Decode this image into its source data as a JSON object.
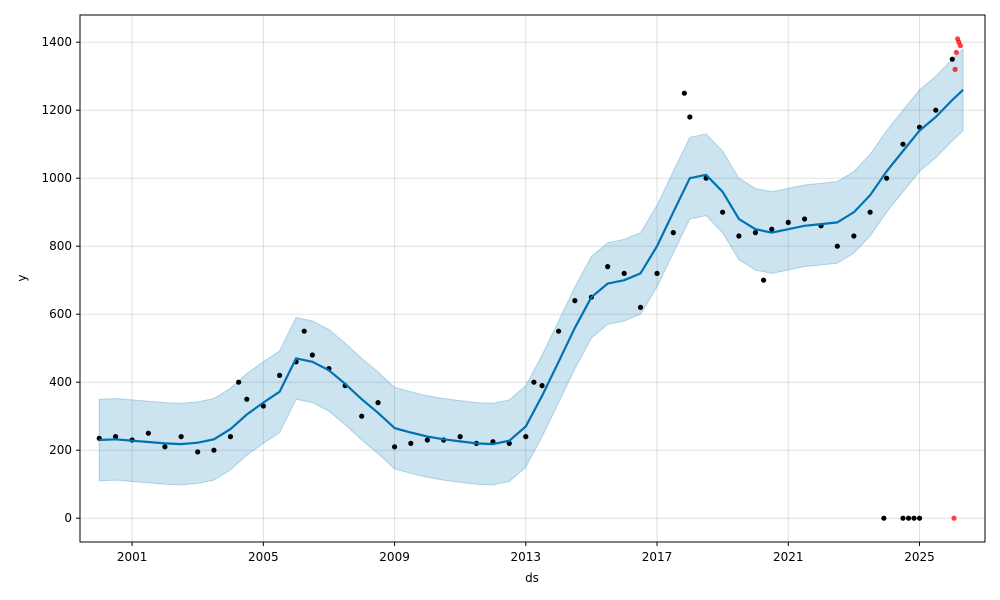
{
  "chart_data": {
    "type": "line",
    "xlabel": "ds",
    "ylabel": "y",
    "xlim": [
      "1999-06-01",
      "2026-12-31"
    ],
    "ylim": [
      -70,
      1480
    ],
    "x_ticks": [
      "2001",
      "2005",
      "2009",
      "2013",
      "2017",
      "2021",
      "2025"
    ],
    "y_ticks": [
      0,
      200,
      400,
      600,
      800,
      1000,
      1200,
      1400
    ],
    "grid": true,
    "colors": {
      "observed": "#000000",
      "forecast": "#0072B2",
      "interval": "#0072B2",
      "anomaly": "#ff0000"
    },
    "series": [
      {
        "role": "forecast",
        "x": [
          "2000-01-01",
          "2000-07-01",
          "2001-01-01",
          "2001-07-01",
          "2002-01-01",
          "2002-07-01",
          "2003-01-01",
          "2003-07-01",
          "2004-01-01",
          "2004-07-01",
          "2005-01-01",
          "2005-07-01",
          "2006-01-01",
          "2006-07-01",
          "2007-01-01",
          "2007-07-01",
          "2008-01-01",
          "2008-07-01",
          "2009-01-01",
          "2009-07-01",
          "2010-01-01",
          "2010-07-01",
          "2011-01-01",
          "2011-07-01",
          "2012-01-01",
          "2012-07-01",
          "2013-01-01",
          "2013-07-01",
          "2014-01-01",
          "2014-07-01",
          "2015-01-01",
          "2015-07-01",
          "2016-01-01",
          "2016-07-01",
          "2017-01-01",
          "2017-07-01",
          "2018-01-01",
          "2018-07-01",
          "2019-01-01",
          "2019-07-01",
          "2020-01-01",
          "2020-07-01",
          "2021-01-01",
          "2021-07-01",
          "2022-01-01",
          "2022-07-01",
          "2023-01-01",
          "2023-07-01",
          "2024-01-01",
          "2024-07-01",
          "2025-01-01",
          "2025-07-01",
          "2026-01-01",
          "2026-05-01"
        ],
        "values": [
          230,
          232,
          228,
          224,
          220,
          218,
          222,
          232,
          262,
          305,
          340,
          372,
          470,
          460,
          435,
          395,
          350,
          310,
          265,
          252,
          240,
          232,
          226,
          220,
          218,
          228,
          270,
          360,
          460,
          560,
          650,
          690,
          700,
          720,
          800,
          900,
          1000,
          1010,
          960,
          880,
          850,
          840,
          850,
          860,
          865,
          870,
          900,
          950,
          1020,
          1080,
          1140,
          1180,
          1230,
          1260
        ]
      },
      {
        "role": "interval_upper",
        "x": [
          "2000-01-01",
          "2000-07-01",
          "2001-01-01",
          "2001-07-01",
          "2002-01-01",
          "2002-07-01",
          "2003-01-01",
          "2003-07-01",
          "2004-01-01",
          "2004-07-01",
          "2005-01-01",
          "2005-07-01",
          "2006-01-01",
          "2006-07-01",
          "2007-01-01",
          "2007-07-01",
          "2008-01-01",
          "2008-07-01",
          "2009-01-01",
          "2009-07-01",
          "2010-01-01",
          "2010-07-01",
          "2011-01-01",
          "2011-07-01",
          "2012-01-01",
          "2012-07-01",
          "2013-01-01",
          "2013-07-01",
          "2014-01-01",
          "2014-07-01",
          "2015-01-01",
          "2015-07-01",
          "2016-01-01",
          "2016-07-01",
          "2017-01-01",
          "2017-07-01",
          "2018-01-01",
          "2018-07-01",
          "2019-01-01",
          "2019-07-01",
          "2020-01-01",
          "2020-07-01",
          "2021-01-01",
          "2021-07-01",
          "2022-01-01",
          "2022-07-01",
          "2023-01-01",
          "2023-07-01",
          "2024-01-01",
          "2024-07-01",
          "2025-01-01",
          "2025-07-01",
          "2026-01-01",
          "2026-05-01"
        ],
        "values": [
          350,
          352,
          348,
          344,
          340,
          338,
          342,
          352,
          382,
          425,
          460,
          492,
          590,
          580,
          555,
          515,
          470,
          430,
          385,
          372,
          360,
          352,
          346,
          340,
          338,
          348,
          390,
          480,
          580,
          680,
          770,
          810,
          820,
          840,
          920,
          1020,
          1120,
          1130,
          1080,
          1000,
          970,
          960,
          970,
          980,
          985,
          990,
          1020,
          1070,
          1140,
          1200,
          1260,
          1300,
          1350,
          1380
        ]
      },
      {
        "role": "interval_lower",
        "x": [
          "2000-01-01",
          "2000-07-01",
          "2001-01-01",
          "2001-07-01",
          "2002-01-01",
          "2002-07-01",
          "2003-01-01",
          "2003-07-01",
          "2004-01-01",
          "2004-07-01",
          "2005-01-01",
          "2005-07-01",
          "2006-01-01",
          "2006-07-01",
          "2007-01-01",
          "2007-07-01",
          "2008-01-01",
          "2008-07-01",
          "2009-01-01",
          "2009-07-01",
          "2010-01-01",
          "2010-07-01",
          "2011-01-01",
          "2011-07-01",
          "2012-01-01",
          "2012-07-01",
          "2013-01-01",
          "2013-07-01",
          "2014-01-01",
          "2014-07-01",
          "2015-01-01",
          "2015-07-01",
          "2016-01-01",
          "2016-07-01",
          "2017-01-01",
          "2017-07-01",
          "2018-01-01",
          "2018-07-01",
          "2019-01-01",
          "2019-07-01",
          "2020-01-01",
          "2020-07-01",
          "2021-01-01",
          "2021-07-01",
          "2022-01-01",
          "2022-07-01",
          "2023-01-01",
          "2023-07-01",
          "2024-01-01",
          "2024-07-01",
          "2025-01-01",
          "2025-07-01",
          "2026-01-01",
          "2026-05-01"
        ],
        "values": [
          110,
          112,
          108,
          104,
          100,
          98,
          102,
          112,
          142,
          185,
          220,
          252,
          350,
          340,
          315,
          275,
          230,
          190,
          145,
          132,
          120,
          112,
          106,
          100,
          98,
          108,
          150,
          240,
          340,
          440,
          530,
          570,
          580,
          600,
          680,
          780,
          880,
          890,
          840,
          760,
          730,
          720,
          730,
          740,
          745,
          750,
          780,
          830,
          900,
          960,
          1020,
          1060,
          1110,
          1140
        ]
      },
      {
        "role": "observed",
        "x": [
          "2000-01-01",
          "2000-07-01",
          "2001-01-01",
          "2001-07-01",
          "2002-01-01",
          "2002-07-01",
          "2003-01-01",
          "2003-07-01",
          "2004-01-01",
          "2004-04-01",
          "2004-07-01",
          "2005-01-01",
          "2005-07-01",
          "2006-01-01",
          "2006-04-01",
          "2006-07-01",
          "2007-01-01",
          "2007-07-01",
          "2008-01-01",
          "2008-07-01",
          "2009-01-01",
          "2009-07-01",
          "2010-01-01",
          "2010-07-01",
          "2011-01-01",
          "2011-07-01",
          "2012-01-01",
          "2012-07-01",
          "2013-01-01",
          "2013-04-01",
          "2013-07-01",
          "2014-01-01",
          "2014-07-01",
          "2015-01-01",
          "2015-07-01",
          "2016-01-01",
          "2016-07-01",
          "2017-01-01",
          "2017-07-01",
          "2017-11-01",
          "2018-01-01",
          "2018-07-01",
          "2019-01-01",
          "2019-07-01",
          "2020-01-01",
          "2020-04-01",
          "2020-07-01",
          "2021-01-01",
          "2021-07-01",
          "2022-01-01",
          "2022-07-01",
          "2023-01-01",
          "2023-07-01",
          "2024-01-01",
          "2024-07-01",
          "2025-01-01",
          "2025-07-01",
          "2026-01-01"
        ],
        "values": [
          235,
          240,
          230,
          250,
          210,
          240,
          195,
          200,
          240,
          400,
          350,
          330,
          420,
          460,
          550,
          480,
          440,
          390,
          300,
          340,
          210,
          220,
          230,
          230,
          240,
          220,
          225,
          220,
          240,
          400,
          390,
          550,
          640,
          650,
          740,
          720,
          620,
          720,
          840,
          1250,
          1180,
          1000,
          900,
          830,
          840,
          700,
          850,
          870,
          880,
          860,
          800,
          830,
          900,
          1000,
          1100,
          1150,
          1200,
          1350
        ]
      },
      {
        "role": "anomaly",
        "x": [
          "2026-02-01",
          "2026-02-15",
          "2026-03-01",
          "2026-03-15",
          "2026-04-01"
        ],
        "values": [
          1320,
          1370,
          1410,
          1400,
          1390
        ]
      }
    ],
    "zero_points": {
      "observed_x": [
        "2023-12-01",
        "2024-07-01",
        "2024-09-01",
        "2024-11-01",
        "2025-01-01"
      ],
      "observed_y": [
        0,
        0,
        0,
        0,
        0
      ],
      "anomaly_x": [
        "2026-01-20"
      ],
      "anomaly_y": [
        0
      ]
    }
  }
}
